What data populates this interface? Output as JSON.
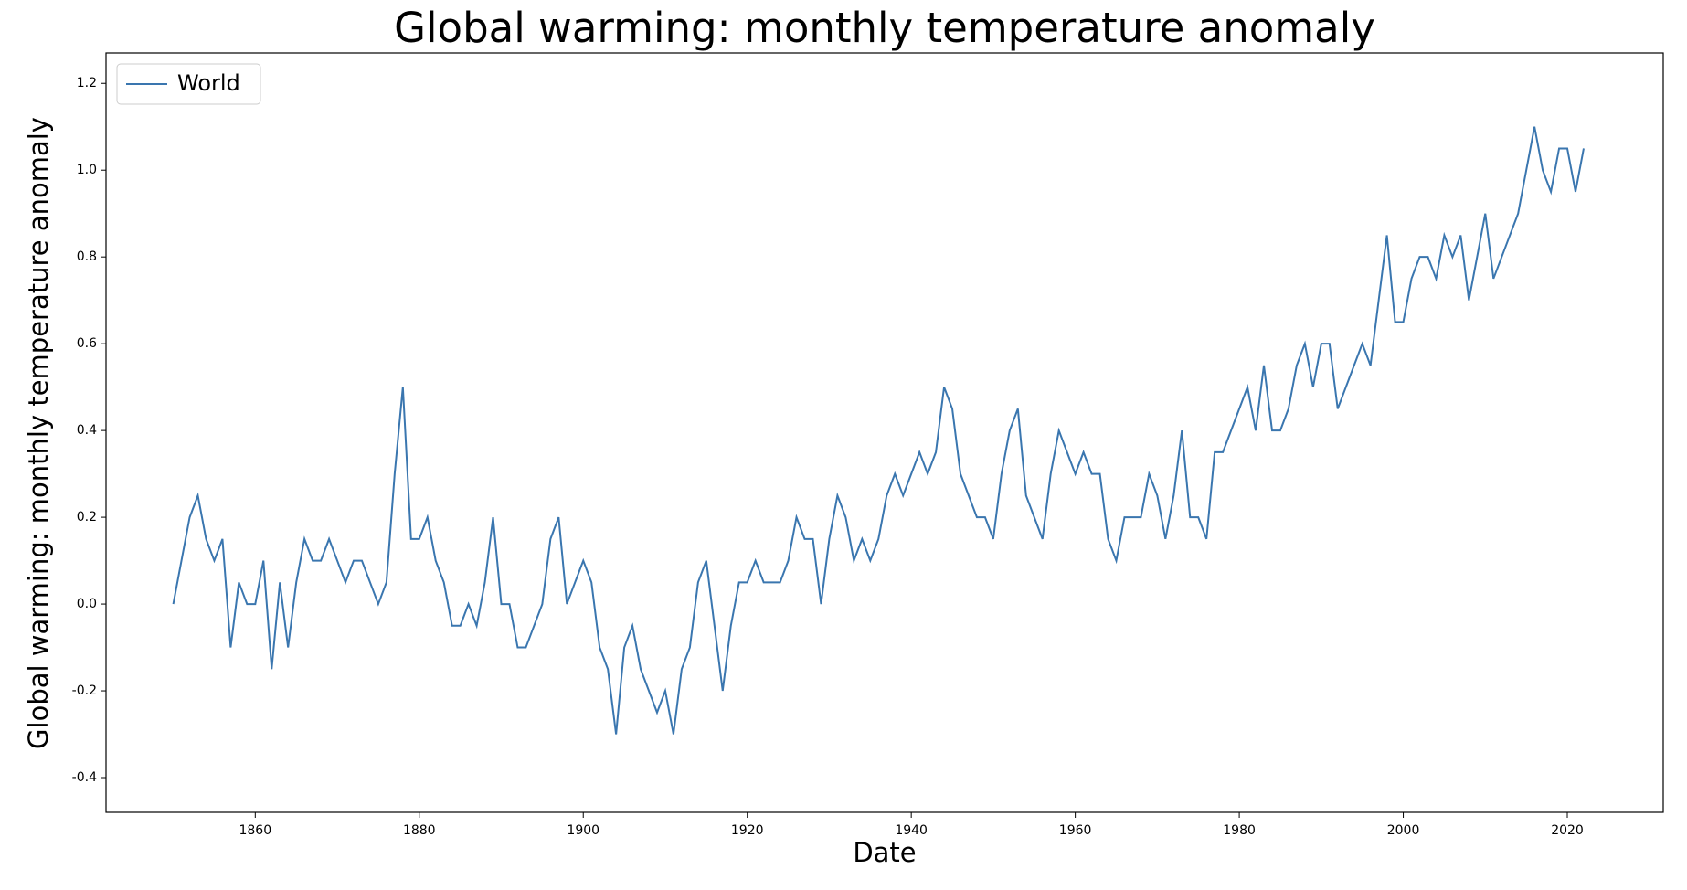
{
  "chart_data": {
    "type": "line",
    "title": "Global warming: monthly temperature anomaly",
    "xlabel": "Date",
    "ylabel": "Global warming: monthly temperature anomaly",
    "legend": "upper left",
    "grid": false,
    "xlim": [
      1841.8,
      2031.7
    ],
    "ylim": [
      -0.48,
      1.27
    ],
    "xticks": [
      1860,
      1880,
      1900,
      1920,
      1940,
      1960,
      1980,
      2000,
      2020
    ],
    "yticks": [
      {
        "value": -0.4,
        "label": "-0.4"
      },
      {
        "value": -0.2,
        "label": "-0.2"
      },
      {
        "value": 0,
        "label": "0.0"
      },
      {
        "value": 0.2,
        "label": "0.2"
      },
      {
        "value": 0.4,
        "label": "0.4"
      },
      {
        "value": 0.6,
        "label": "0.6"
      },
      {
        "value": 0.8,
        "label": "0.8"
      },
      {
        "value": 1,
        "label": "1.0"
      },
      {
        "value": 1.2,
        "label": "1.2"
      }
    ],
    "x": [
      1850,
      1851,
      1852,
      1853,
      1854,
      1855,
      1856,
      1857,
      1858,
      1859,
      1860,
      1861,
      1862,
      1863,
      1864,
      1865,
      1866,
      1867,
      1868,
      1869,
      1870,
      1871,
      1872,
      1873,
      1874,
      1875,
      1876,
      1877,
      1878,
      1879,
      1880,
      1881,
      1882,
      1883,
      1884,
      1885,
      1886,
      1887,
      1888,
      1889,
      1890,
      1891,
      1892,
      1893,
      1894,
      1895,
      1896,
      1897,
      1898,
      1899,
      1900,
      1901,
      1902,
      1903,
      1904,
      1905,
      1906,
      1907,
      1908,
      1909,
      1910,
      1911,
      1912,
      1913,
      1914,
      1915,
      1916,
      1917,
      1918,
      1919,
      1920,
      1921,
      1922,
      1923,
      1924,
      1925,
      1926,
      1927,
      1928,
      1929,
      1930,
      1931,
      1932,
      1933,
      1934,
      1935,
      1936,
      1937,
      1938,
      1939,
      1940,
      1941,
      1942,
      1943,
      1944,
      1945,
      1946,
      1947,
      1948,
      1949,
      1950,
      1951,
      1952,
      1953,
      1954,
      1955,
      1956,
      1957,
      1958,
      1959,
      1960,
      1961,
      1962,
      1963,
      1964,
      1965,
      1966,
      1967,
      1968,
      1969,
      1970,
      1971,
      1972,
      1973,
      1974,
      1975,
      1976,
      1977,
      1978,
      1979,
      1980,
      1981,
      1982,
      1983,
      1984,
      1985,
      1986,
      1987,
      1988,
      1989,
      1990,
      1991,
      1992,
      1993,
      1994,
      1995,
      1996,
      1997,
      1998,
      1999,
      2000,
      2001,
      2002,
      2003,
      2004,
      2005,
      2006,
      2007,
      2008,
      2009,
      2010,
      2011,
      2012,
      2013,
      2014,
      2015,
      2016,
      2017,
      2018,
      2019,
      2020,
      2021,
      2022
    ],
    "series": [
      {
        "name": "World",
        "color": "#3a76af",
        "values": [
          0.0,
          0.1,
          0.2,
          0.25,
          0.15,
          0.1,
          0.15,
          -0.1,
          0.05,
          0.0,
          0.0,
          0.1,
          -0.15,
          0.05,
          -0.1,
          0.05,
          0.15,
          0.1,
          0.1,
          0.15,
          0.1,
          0.05,
          0.1,
          0.1,
          0.05,
          0.0,
          0.05,
          0.3,
          0.5,
          0.15,
          0.15,
          0.2,
          0.1,
          0.05,
          -0.05,
          -0.05,
          0.0,
          -0.05,
          0.05,
          0.2,
          0.0,
          0.0,
          -0.1,
          -0.1,
          -0.05,
          0.0,
          0.15,
          0.2,
          0.0,
          0.05,
          0.1,
          0.05,
          -0.1,
          -0.15,
          -0.3,
          -0.1,
          -0.05,
          -0.15,
          -0.2,
          -0.25,
          -0.2,
          -0.3,
          -0.15,
          -0.1,
          0.05,
          0.1,
          -0.05,
          -0.2,
          -0.05,
          0.05,
          0.05,
          0.1,
          0.05,
          0.05,
          0.05,
          0.1,
          0.2,
          0.15,
          0.15,
          0.0,
          0.15,
          0.25,
          0.2,
          0.1,
          0.15,
          0.1,
          0.15,
          0.25,
          0.3,
          0.25,
          0.3,
          0.35,
          0.3,
          0.35,
          0.5,
          0.45,
          0.3,
          0.25,
          0.2,
          0.2,
          0.15,
          0.3,
          0.4,
          0.45,
          0.25,
          0.2,
          0.15,
          0.3,
          0.4,
          0.35,
          0.3,
          0.35,
          0.3,
          0.3,
          0.15,
          0.1,
          0.2,
          0.2,
          0.2,
          0.3,
          0.25,
          0.15,
          0.25,
          0.4,
          0.2,
          0.2,
          0.15,
          0.35,
          0.35,
          0.4,
          0.45,
          0.5,
          0.4,
          0.55,
          0.4,
          0.4,
          0.45,
          0.55,
          0.6,
          0.5,
          0.6,
          0.6,
          0.45,
          0.5,
          0.55,
          0.6,
          0.55,
          0.7,
          0.85,
          0.65,
          0.65,
          0.75,
          0.8,
          0.8,
          0.75,
          0.85,
          0.8,
          0.85,
          0.7,
          0.8,
          0.9,
          0.75,
          0.8,
          0.85,
          0.9,
          1.0,
          1.1,
          1.0,
          0.95,
          1.05,
          1.05,
          0.95,
          1.05
        ]
      }
    ]
  }
}
